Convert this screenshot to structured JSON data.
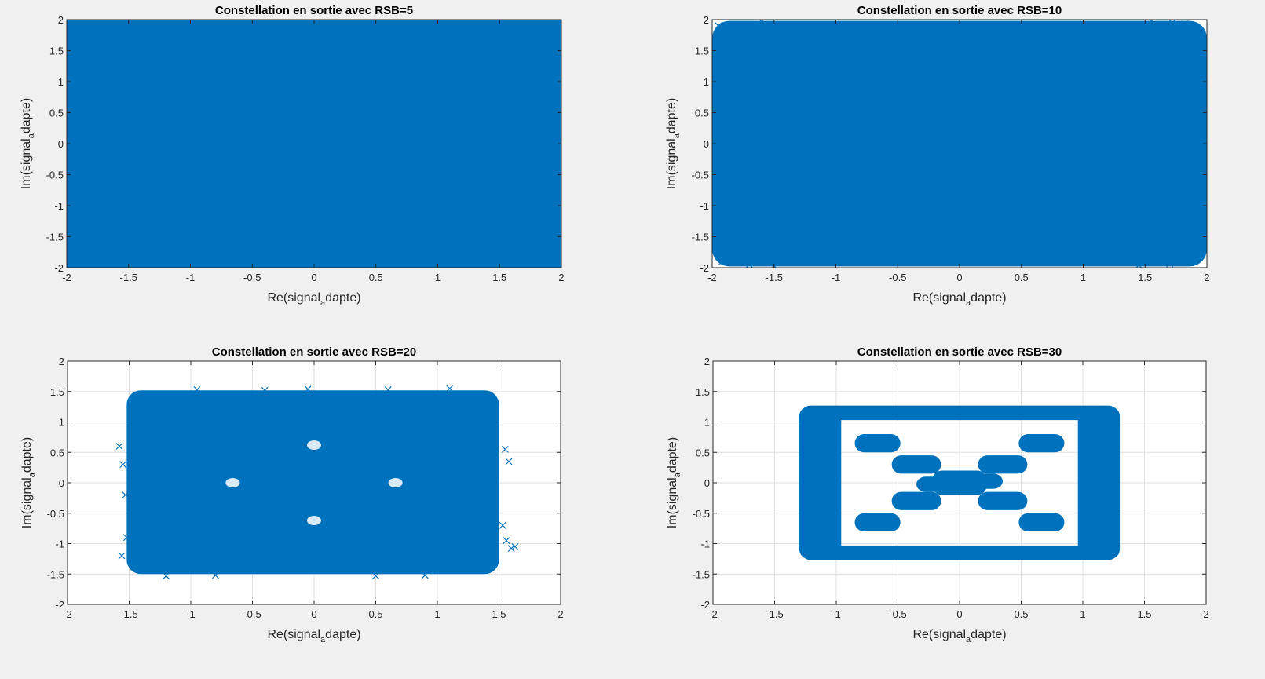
{
  "figure": {
    "background": "#f0f0f0",
    "axes_background": "#ffffff",
    "marker_color": "#0072bd"
  },
  "chart_data": [
    {
      "type": "scatter",
      "title": "Constellation en sortie avec RSB=5",
      "xlabel_main": "Re(signal",
      "xlabel_sub": "a",
      "xlabel_tail": "dapte)",
      "ylabel_main": "Im(signal",
      "ylabel_sub": "a",
      "ylabel_tail": "dapte)",
      "xlim": [
        -2,
        2
      ],
      "ylim": [
        -2,
        2
      ],
      "xticks": [
        "-2",
        "-1.5",
        "-1",
        "-0.5",
        "0",
        "0.5",
        "1",
        "1.5",
        "2"
      ],
      "yticks": [
        "-2",
        "-1.5",
        "-1",
        "-0.5",
        "0",
        "0.5",
        "1",
        "1.5",
        "2"
      ],
      "grid": true,
      "marker": "x",
      "dense_region": [
        [
          -2,
          2
        ],
        [
          -2,
          2
        ]
      ],
      "points": [
        [
          -1.98,
          1.97
        ],
        [
          1.97,
          1.98
        ],
        [
          -1.97,
          -1.98
        ],
        [
          1.98,
          -1.97
        ]
      ]
    },
    {
      "type": "scatter",
      "title": "Constellation en sortie avec RSB=10",
      "xlabel_main": "Re(signal",
      "xlabel_sub": "a",
      "xlabel_tail": "dapte)",
      "ylabel_main": "Im(signal",
      "ylabel_sub": "a",
      "ylabel_tail": "dapte)",
      "xlim": [
        -2,
        2
      ],
      "ylim": [
        -2,
        2
      ],
      "xticks": [
        "-2",
        "-1.5",
        "-1",
        "-0.5",
        "0",
        "0.5",
        "1",
        "1.5",
        "2"
      ],
      "yticks": [
        "-2",
        "-1.5",
        "-1",
        "-0.5",
        "0",
        "0.5",
        "1",
        "1.5",
        "2"
      ],
      "grid": true,
      "marker": "x",
      "dense_region": [
        [
          -2,
          2
        ],
        [
          -1.98,
          1.98
        ]
      ],
      "points": [
        [
          -1.95,
          1.9
        ],
        [
          -1.85,
          1.85
        ],
        [
          -1.9,
          1.75
        ],
        [
          -1.75,
          1.92
        ],
        [
          1.9,
          1.88
        ],
        [
          1.82,
          1.93
        ],
        [
          1.93,
          1.78
        ],
        [
          1.72,
          1.95
        ],
        [
          -1.92,
          -1.9
        ],
        [
          -1.82,
          -1.85
        ],
        [
          -1.95,
          -1.75
        ],
        [
          -1.7,
          -1.95
        ],
        [
          1.9,
          -1.9
        ],
        [
          1.8,
          -1.85
        ],
        [
          1.95,
          -1.78
        ],
        [
          1.7,
          -1.94
        ],
        [
          -1.6,
          1.97
        ],
        [
          1.55,
          1.97
        ],
        [
          -1.5,
          -1.97
        ],
        [
          1.45,
          -1.96
        ]
      ]
    },
    {
      "type": "scatter",
      "title": "Constellation en sortie avec RSB=20",
      "xlabel_main": "Re(signal",
      "xlabel_sub": "a",
      "xlabel_tail": "dapte)",
      "ylabel_main": "Im(signal",
      "ylabel_sub": "a",
      "ylabel_tail": "dapte)",
      "xlim": [
        -2,
        2
      ],
      "ylim": [
        -2,
        2
      ],
      "xticks": [
        "-2",
        "-1.5",
        "-1",
        "-0.5",
        "0",
        "0.5",
        "1",
        "1.5",
        "2"
      ],
      "yticks": [
        "-2",
        "-1.5",
        "-1",
        "-0.5",
        "0",
        "0.5",
        "1",
        "1.5",
        "2"
      ],
      "grid": true,
      "marker": "x",
      "dense_region": [
        [
          -1.52,
          1.5
        ],
        [
          -1.5,
          1.52
        ]
      ],
      "holes": [
        [
          0,
          0.62
        ],
        [
          -0.66,
          0
        ],
        [
          0.66,
          0
        ],
        [
          0,
          -0.62
        ]
      ],
      "points": [
        [
          -1.55,
          0.3
        ],
        [
          -1.58,
          0.6
        ],
        [
          -1.53,
          -0.2
        ],
        [
          -1.56,
          -1.2
        ],
        [
          -1.52,
          -0.9
        ],
        [
          1.55,
          0.55
        ],
        [
          1.58,
          0.35
        ],
        [
          1.53,
          -0.7
        ],
        [
          1.56,
          -0.95
        ],
        [
          1.63,
          -1.05
        ],
        [
          1.6,
          -1.08
        ],
        [
          -1.2,
          -1.53
        ],
        [
          -0.8,
          -1.52
        ],
        [
          0.5,
          -1.53
        ],
        [
          0.9,
          -1.52
        ],
        [
          -0.95,
          1.53
        ],
        [
          -0.05,
          1.54
        ],
        [
          0.6,
          1.53
        ],
        [
          1.1,
          1.55
        ],
        [
          -0.4,
          1.52
        ]
      ]
    },
    {
      "type": "scatter",
      "title": "Constellation en sortie avec RSB=30",
      "xlabel_main": "Re(signal",
      "xlabel_sub": "a",
      "xlabel_tail": "dapte)",
      "ylabel_main": "Im(signal",
      "ylabel_sub": "a",
      "ylabel_tail": "dapte)",
      "xlim": [
        -2,
        2
      ],
      "ylim": [
        -2,
        2
      ],
      "xticks": [
        "-2",
        "-1.5",
        "-1",
        "-0.5",
        "0",
        "0.5",
        "1",
        "1.5",
        "2"
      ],
      "yticks": [
        "-2",
        "-1.5",
        "-1",
        "-0.5",
        "0",
        "0.5",
        "1",
        "1.5",
        "2"
      ],
      "grid": true,
      "marker": "x",
      "bands": [
        [
          -1.28,
          1.28,
          1.03,
          1.27
        ],
        [
          -1.28,
          1.28,
          -1.27,
          -1.03
        ],
        [
          -1.3,
          -0.96,
          -1.25,
          1.25
        ],
        [
          0.96,
          1.3,
          -1.25,
          1.25
        ],
        [
          -0.85,
          -0.48,
          0.5,
          0.8
        ],
        [
          0.48,
          0.85,
          0.5,
          0.8
        ],
        [
          -0.85,
          -0.48,
          -0.8,
          -0.5
        ],
        [
          0.48,
          0.85,
          -0.8,
          -0.5
        ],
        [
          -0.55,
          -0.15,
          0.15,
          0.45
        ],
        [
          0.15,
          0.55,
          0.15,
          0.45
        ],
        [
          -0.55,
          -0.15,
          -0.45,
          -0.15
        ],
        [
          0.15,
          0.55,
          -0.45,
          -0.15
        ],
        [
          -0.22,
          0.22,
          -0.2,
          0.2
        ],
        [
          -0.35,
          -0.05,
          -0.15,
          0.1
        ],
        [
          0.05,
          0.35,
          -0.1,
          0.15
        ]
      ],
      "points": []
    }
  ]
}
